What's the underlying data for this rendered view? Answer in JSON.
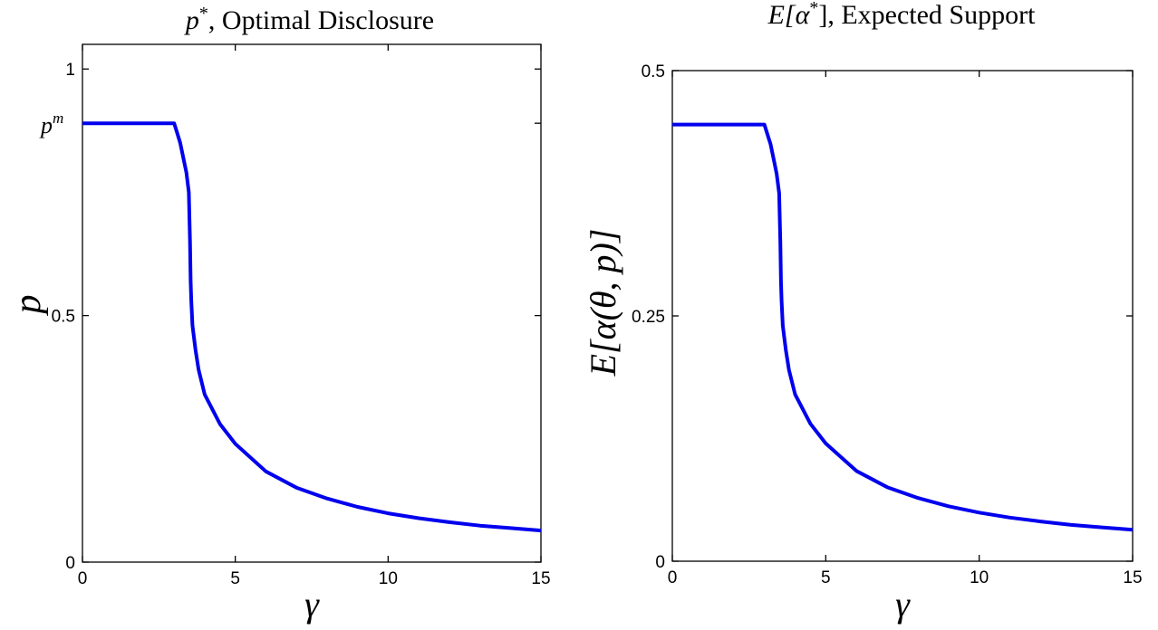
{
  "chart_data": [
    {
      "type": "line",
      "title_parts": {
        "symbol": "p",
        "superscript": "*",
        "text": ", Optimal Disclosure"
      },
      "xlabel": "γ",
      "ylabel": "p",
      "xlim": [
        0,
        15
      ],
      "ylim": [
        0,
        1.05
      ],
      "xticks": [
        0,
        5,
        10,
        15
      ],
      "yticks": [
        0,
        0.5,
        1
      ],
      "ytick_labels": [
        "0",
        "0.5",
        "1"
      ],
      "extra_ytick": {
        "value": 0.89,
        "label_base": "p",
        "label_sup": "m"
      },
      "grid": false,
      "series": [
        {
          "color": "#0000ee",
          "x": [
            0,
            1,
            2,
            3.0,
            3.1,
            3.2,
            3.3,
            3.4,
            3.48,
            3.52,
            3.54,
            3.56,
            3.6,
            3.7,
            3.8,
            4.0,
            4.5,
            5.0,
            6.0,
            7.0,
            8.0,
            9.0,
            10.0,
            11.0,
            12.0,
            13.0,
            14.0,
            15.0
          ],
          "y": [
            0.89,
            0.89,
            0.89,
            0.89,
            0.87,
            0.85,
            0.82,
            0.79,
            0.75,
            0.65,
            0.57,
            0.53,
            0.48,
            0.43,
            0.39,
            0.34,
            0.28,
            0.24,
            0.184,
            0.151,
            0.129,
            0.112,
            0.099,
            0.089,
            0.081,
            0.074,
            0.069,
            0.064
          ]
        }
      ]
    },
    {
      "type": "line",
      "title_parts": {
        "prefix": "E[",
        "symbol": "α",
        "superscript": "*",
        "suffix": "]",
        "text": ", Expected Support"
      },
      "xlabel": "γ",
      "ylabel": "E[α(θ, p)]",
      "xlim": [
        0,
        15
      ],
      "ylim": [
        0,
        0.5
      ],
      "xticks": [
        0,
        5,
        10,
        15
      ],
      "yticks": [
        0,
        0.25,
        0.5
      ],
      "ytick_labels": [
        "0",
        "0.25",
        "0.5"
      ],
      "grid": false,
      "series": [
        {
          "color": "#0000ee",
          "x": [
            0,
            1,
            2,
            3.0,
            3.1,
            3.2,
            3.3,
            3.4,
            3.48,
            3.52,
            3.54,
            3.56,
            3.6,
            3.7,
            3.8,
            4.0,
            4.5,
            5.0,
            6.0,
            7.0,
            8.0,
            9.0,
            10.0,
            11.0,
            12.0,
            13.0,
            14.0,
            15.0
          ],
          "y": [
            0.445,
            0.445,
            0.445,
            0.445,
            0.435,
            0.425,
            0.41,
            0.395,
            0.375,
            0.325,
            0.285,
            0.265,
            0.24,
            0.215,
            0.195,
            0.17,
            0.14,
            0.12,
            0.092,
            0.0755,
            0.0645,
            0.056,
            0.0495,
            0.0445,
            0.0405,
            0.037,
            0.0345,
            0.032
          ]
        }
      ]
    }
  ]
}
